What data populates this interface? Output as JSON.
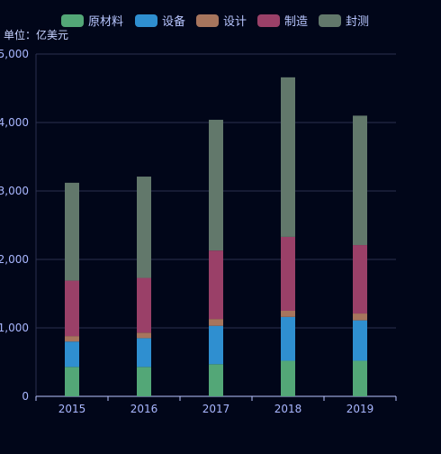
{
  "chart_data": {
    "type": "bar",
    "stacked": true,
    "unit_label": "单位：亿美元",
    "categories": [
      "2015",
      "2016",
      "2017",
      "2018",
      "2019"
    ],
    "series": [
      {
        "name": "原材料",
        "color": "#53a777",
        "values": [
          430,
          430,
          470,
          520,
          520
        ]
      },
      {
        "name": "设备",
        "color": "#2f8fd0",
        "values": [
          370,
          420,
          560,
          640,
          590
        ]
      },
      {
        "name": "设计",
        "color": "#a7755d",
        "values": [
          80,
          80,
          100,
          90,
          100
        ]
      },
      {
        "name": "制造",
        "color": "#9a4068",
        "values": [
          810,
          800,
          1000,
          1080,
          1000
        ]
      },
      {
        "name": "封测",
        "color": "#62786b",
        "values": [
          1430,
          1480,
          1910,
          2330,
          1890
        ]
      }
    ],
    "ylim": [
      0,
      5000
    ],
    "yticks": [
      "0",
      "1,000",
      "2,000",
      "3,000",
      "4,000",
      "5,000"
    ],
    "ytick_values": [
      0,
      1000,
      2000,
      3000,
      4000,
      5000
    ],
    "legend_position": "top",
    "grid": true
  }
}
